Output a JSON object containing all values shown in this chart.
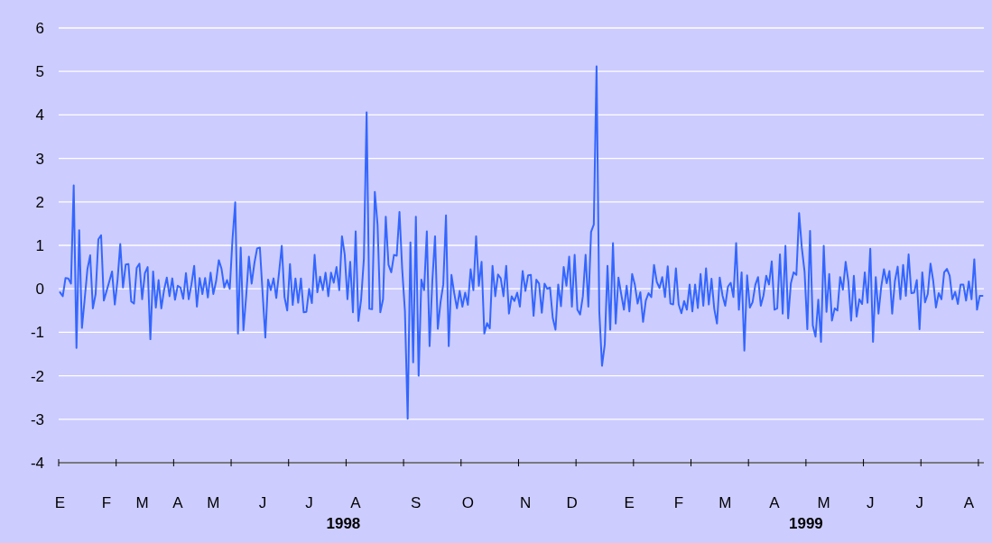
{
  "chart_data": {
    "type": "line",
    "categories": [
      "E",
      null,
      null,
      null,
      null,
      null,
      null,
      null,
      null,
      null,
      null,
      null,
      null,
      null,
      null,
      null,
      null,
      "F",
      null,
      null,
      null,
      null,
      null,
      null,
      null,
      null,
      null,
      null,
      null,
      null,
      "M",
      null,
      null,
      null,
      null,
      null,
      null,
      null,
      null,
      null,
      null,
      null,
      null,
      "A",
      null,
      null,
      null,
      null,
      null,
      null,
      null,
      null,
      null,
      null,
      null,
      null,
      "M",
      null,
      null,
      null,
      null,
      null,
      null,
      null,
      null,
      null,
      null,
      null,
      null,
      null,
      null,
      null,
      null,
      null,
      "J",
      null,
      null,
      null,
      null,
      null,
      null,
      null,
      null,
      null,
      null,
      null,
      null,
      null,
      null,
      null,
      null,
      "J",
      null,
      null,
      null,
      null,
      null,
      null,
      null,
      null,
      null,
      null,
      null,
      null,
      null,
      null,
      null,
      null,
      "A",
      null,
      null,
      null,
      null,
      null,
      null,
      null,
      null,
      null,
      null,
      null,
      null,
      null,
      null,
      null,
      null,
      null,
      null,
      null,
      null,
      null,
      "S",
      null,
      null,
      null,
      null,
      null,
      null,
      null,
      null,
      null,
      null,
      null,
      null,
      null,
      null,
      null,
      null,
      null,
      null,
      "O",
      null,
      null,
      null,
      null,
      null,
      null,
      null,
      null,
      null,
      null,
      null,
      null,
      null,
      null,
      null,
      null,
      null,
      null,
      null,
      null,
      "N",
      null,
      null,
      null,
      null,
      null,
      null,
      null,
      null,
      null,
      null,
      null,
      null,
      null,
      null,
      null,
      null,
      "D",
      null,
      null,
      null,
      null,
      null,
      null,
      null,
      null,
      null,
      null,
      null,
      null,
      null,
      null,
      null,
      null,
      null,
      null,
      null,
      null,
      "E",
      null,
      null,
      null,
      null,
      null,
      null,
      null,
      null,
      null,
      null,
      null,
      null,
      null,
      null,
      null,
      null,
      null,
      "F",
      null,
      null,
      null,
      null,
      null,
      null,
      null,
      null,
      null,
      null,
      null,
      null,
      null,
      null,
      null,
      null,
      "M",
      null,
      null,
      null,
      null,
      null,
      null,
      null,
      null,
      null,
      null,
      null,
      null,
      null,
      null,
      null,
      null,
      null,
      "A",
      null,
      null,
      null,
      null,
      null,
      null,
      null,
      null,
      null,
      null,
      null,
      null,
      null,
      null,
      null,
      null,
      null,
      "M",
      null,
      null,
      null,
      null,
      null,
      null,
      null,
      null,
      null,
      null,
      null,
      null,
      null,
      null,
      null,
      null,
      "J",
      null,
      null,
      null,
      null,
      null,
      null,
      null,
      null,
      null,
      null,
      null,
      null,
      null,
      null,
      null,
      null,
      null,
      "J",
      null,
      null,
      null,
      null,
      null,
      null,
      null,
      null,
      null,
      null,
      null,
      null,
      null,
      null,
      null,
      null,
      null,
      "A",
      null,
      null,
      null,
      null,
      null
    ],
    "series": [
      {
        "color": "#3366ff",
        "values": [
          -0.08,
          -0.17,
          0.25,
          0.24,
          0.12,
          2.38,
          -1.36,
          1.35,
          -0.9,
          -0.24,
          0.45,
          0.77,
          -0.45,
          -0.12,
          1.14,
          1.23,
          -0.27,
          -0.05,
          0.17,
          0.4,
          -0.36,
          0.2,
          1.03,
          0.03,
          0.56,
          0.57,
          -0.29,
          -0.34,
          0.48,
          0.58,
          -0.24,
          0.36,
          0.5,
          -1.16,
          0.4,
          -0.43,
          0.2,
          -0.45,
          -0.03,
          0.26,
          -0.17,
          0.24,
          -0.25,
          0.07,
          0.03,
          -0.23,
          0.36,
          -0.24,
          0.1,
          0.53,
          -0.41,
          0.25,
          -0.12,
          0.25,
          -0.2,
          0.37,
          -0.12,
          0.17,
          0.66,
          0.46,
          0.03,
          0.2,
          0.0,
          1.14,
          1.99,
          -1.03,
          0.95,
          -0.95,
          -0.17,
          0.74,
          0.12,
          0.59,
          0.93,
          0.95,
          -0.1,
          -1.12,
          0.21,
          -0.03,
          0.24,
          -0.21,
          0.37,
          0.99,
          -0.19,
          -0.5,
          0.57,
          -0.37,
          0.24,
          -0.32,
          0.24,
          -0.54,
          -0.53,
          0.0,
          -0.33,
          0.78,
          -0.08,
          0.28,
          -0.03,
          0.37,
          -0.17,
          0.37,
          0.14,
          0.5,
          -0.03,
          1.21,
          0.79,
          -0.24,
          0.62,
          -0.54,
          1.32,
          -0.74,
          -0.24,
          0.69,
          4.06,
          -0.46,
          -0.47,
          2.23,
          1.47,
          -0.54,
          -0.24,
          1.66,
          0.55,
          0.38,
          0.78,
          0.76,
          1.77,
          0.45,
          -0.52,
          -2.99,
          1.07,
          -1.69,
          1.66,
          -2.0,
          0.21,
          -0.03,
          1.32,
          -1.32,
          0.17,
          1.21,
          -0.92,
          -0.31,
          0.1,
          1.69,
          -1.32,
          0.32,
          -0.1,
          -0.45,
          -0.05,
          -0.41,
          -0.09,
          -0.37,
          0.45,
          -0.03,
          1.21,
          0.07,
          0.62,
          -1.03,
          -0.79,
          -0.91,
          0.53,
          -0.17,
          0.33,
          0.24,
          -0.17,
          0.53,
          -0.57,
          -0.17,
          -0.28,
          -0.09,
          -0.41,
          0.41,
          -0.05,
          0.31,
          0.32,
          -0.62,
          0.21,
          0.12,
          -0.55,
          0.12,
          0.0,
          0.03,
          -0.67,
          -0.94,
          0.1,
          -0.4,
          0.5,
          0.07,
          0.74,
          -0.41,
          0.78,
          -0.48,
          -0.59,
          -0.17,
          0.78,
          -0.41,
          1.31,
          1.48,
          5.12,
          -0.52,
          -1.77,
          -1.28,
          0.53,
          -0.94,
          1.05,
          -0.8,
          0.26,
          -0.12,
          -0.48,
          0.07,
          -0.52,
          0.34,
          0.09,
          -0.34,
          -0.08,
          -0.76,
          -0.27,
          -0.1,
          -0.19,
          0.55,
          0.16,
          0.02,
          0.27,
          -0.19,
          0.52,
          -0.34,
          -0.36,
          0.47,
          -0.36,
          -0.56,
          -0.28,
          -0.48,
          0.1,
          -0.52,
          0.1,
          -0.44,
          0.34,
          -0.39,
          0.47,
          -0.36,
          0.23,
          -0.46,
          -0.8,
          0.26,
          -0.15,
          -0.39,
          0.05,
          0.14,
          -0.19,
          1.05,
          -0.48,
          0.38,
          -1.42,
          0.31,
          -0.43,
          -0.31,
          0.09,
          0.27,
          -0.39,
          -0.15,
          0.3,
          0.1,
          0.63,
          -0.48,
          -0.45,
          0.79,
          -0.57,
          0.99,
          -0.68,
          0.13,
          0.38,
          0.32,
          1.74,
          0.94,
          0.39,
          -0.93,
          1.33,
          -0.84,
          -1.1,
          -0.25,
          -1.22,
          0.99,
          -0.53,
          0.34,
          -0.73,
          -0.45,
          -0.5,
          0.27,
          -0.02,
          0.62,
          0.16,
          -0.73,
          0.3,
          -0.64,
          -0.24,
          -0.35,
          0.38,
          -0.32,
          0.92,
          -1.22,
          0.27,
          -0.57,
          0.05,
          0.45,
          0.13,
          0.41,
          -0.57,
          0.18,
          0.51,
          -0.24,
          0.55,
          -0.16,
          0.79,
          -0.1,
          -0.09,
          0.2,
          -0.93,
          0.38,
          -0.31,
          -0.12,
          0.58,
          0.18,
          -0.43,
          -0.1,
          -0.24,
          0.38,
          0.46,
          0.3,
          -0.24,
          -0.07,
          -0.35,
          0.1,
          0.1,
          -0.27,
          0.17,
          -0.24,
          0.68,
          -0.48,
          -0.16,
          -0.16
        ]
      }
    ],
    "ylim": [
      -4,
      6
    ],
    "yticks": [
      -4,
      -3,
      -2,
      -1,
      0,
      1,
      2,
      3,
      4,
      5,
      6
    ],
    "grid": "y",
    "line_style": "solid",
    "marker": "none",
    "annotations": [
      "1998",
      "1999"
    ]
  }
}
